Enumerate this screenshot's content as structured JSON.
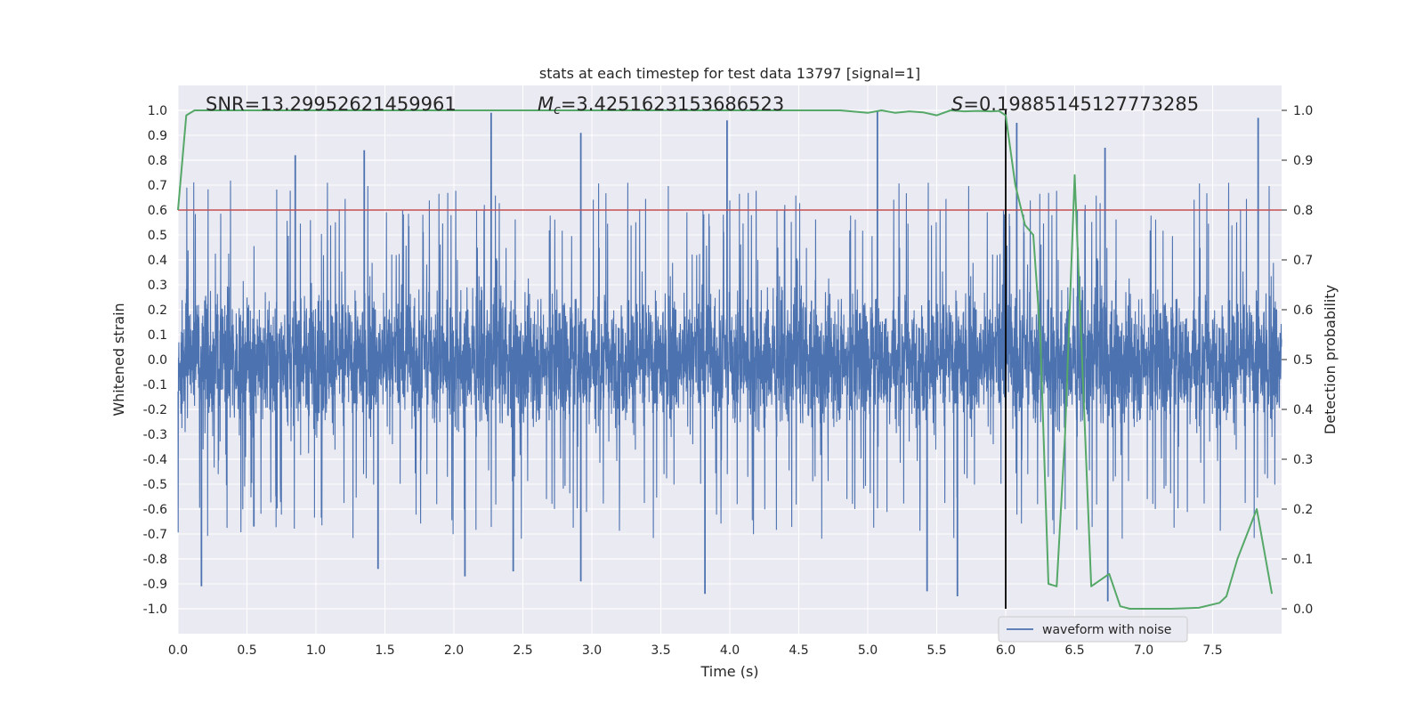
{
  "chart_data": {
    "type": "line",
    "title": "stats at each timestep for test data 13797 [signal=1]",
    "xlabel": "Time (s)",
    "ylabel": "Whitened strain",
    "y2label": "Detection probability",
    "xlim": [
      0,
      8
    ],
    "ylim": [
      -1.1,
      1.1
    ],
    "y2lim": [
      -0.05,
      1.05
    ],
    "x_ticks": [
      "0.0",
      "0.5",
      "1.0",
      "1.5",
      "2.0",
      "2.5",
      "3.0",
      "3.5",
      "4.0",
      "4.5",
      "5.0",
      "5.5",
      "6.0",
      "6.5",
      "7.0",
      "7.5"
    ],
    "y_ticks": [
      "1.0",
      "0.9",
      "0.8",
      "0.7",
      "0.6",
      "0.5",
      "0.4",
      "0.3",
      "0.2",
      "0.1",
      "0.0",
      "-0.1",
      "-0.2",
      "-0.3",
      "-0.4",
      "-0.5",
      "-0.6",
      "-0.7",
      "-0.8",
      "-0.9",
      "-1.0"
    ],
    "y2_ticks": [
      "1.0",
      "0.9",
      "0.8",
      "0.7",
      "0.6",
      "0.5",
      "0.4",
      "0.3",
      "0.2",
      "0.1",
      "0.0"
    ],
    "grid": true,
    "legend_position": "lower-center",
    "annotations": {
      "snr": "SNR=13.29952621459961",
      "mc_symbol": "M",
      "mc_sub": "c",
      "mc_value": "=3.4251623153686523",
      "s_symbol": "S",
      "s_value": "=0.19885145127773285"
    },
    "threshold": {
      "value": 0.8,
      "color": "#c44e52"
    },
    "marker_time": 6.0,
    "series": [
      {
        "name": "waveform with noise",
        "color": "#4c72b0",
        "axis": "left",
        "description": "dense noisy strain trace",
        "peaks": [
          {
            "t": 0.17,
            "v": -0.91
          },
          {
            "t": 0.55,
            "v": -0.67
          },
          {
            "t": 0.85,
            "v": 0.82
          },
          {
            "t": 1.35,
            "v": 0.84
          },
          {
            "t": 1.45,
            "v": -0.84
          },
          {
            "t": 2.08,
            "v": -0.87
          },
          {
            "t": 2.27,
            "v": 0.99
          },
          {
            "t": 2.43,
            "v": -0.85
          },
          {
            "t": 2.92,
            "v": 0.91
          },
          {
            "t": 2.92,
            "v": -0.89
          },
          {
            "t": 3.82,
            "v": -0.94
          },
          {
            "t": 3.98,
            "v": 0.96
          },
          {
            "t": 5.07,
            "v": 1.0
          },
          {
            "t": 5.43,
            "v": -0.93
          },
          {
            "t": 5.65,
            "v": -0.95
          },
          {
            "t": 6.08,
            "v": 0.95
          },
          {
            "t": 6.72,
            "v": 0.85
          },
          {
            "t": 6.74,
            "v": -0.97
          },
          {
            "t": 7.83,
            "v": 0.97
          }
        ]
      },
      {
        "name": "detection probability",
        "color": "#55a868",
        "axis": "right",
        "x": [
          0.0,
          0.06,
          0.12,
          0.5,
          1.0,
          2.0,
          3.0,
          4.0,
          4.5,
          4.8,
          5.0,
          5.1,
          5.2,
          5.3,
          5.4,
          5.5,
          5.6,
          5.7,
          5.8,
          5.9,
          5.95,
          6.0,
          6.07,
          6.14,
          6.2,
          6.25,
          6.31,
          6.37,
          6.43,
          6.5,
          6.62,
          6.75,
          6.83,
          6.9,
          7.0,
          7.2,
          7.4,
          7.55,
          7.6,
          7.68,
          7.82,
          7.93
        ],
        "y": [
          0.8,
          0.99,
          1.0,
          1.0,
          1.0,
          1.0,
          1.0,
          1.0,
          1.0,
          1.0,
          0.995,
          1.0,
          0.995,
          0.998,
          0.996,
          0.99,
          1.0,
          0.998,
          0.999,
          0.998,
          0.999,
          0.99,
          0.85,
          0.77,
          0.75,
          0.55,
          0.05,
          0.045,
          0.35,
          0.87,
          0.045,
          0.07,
          0.005,
          0.0,
          0.0,
          0.0,
          0.002,
          0.012,
          0.025,
          0.1,
          0.2,
          0.03
        ]
      }
    ]
  }
}
